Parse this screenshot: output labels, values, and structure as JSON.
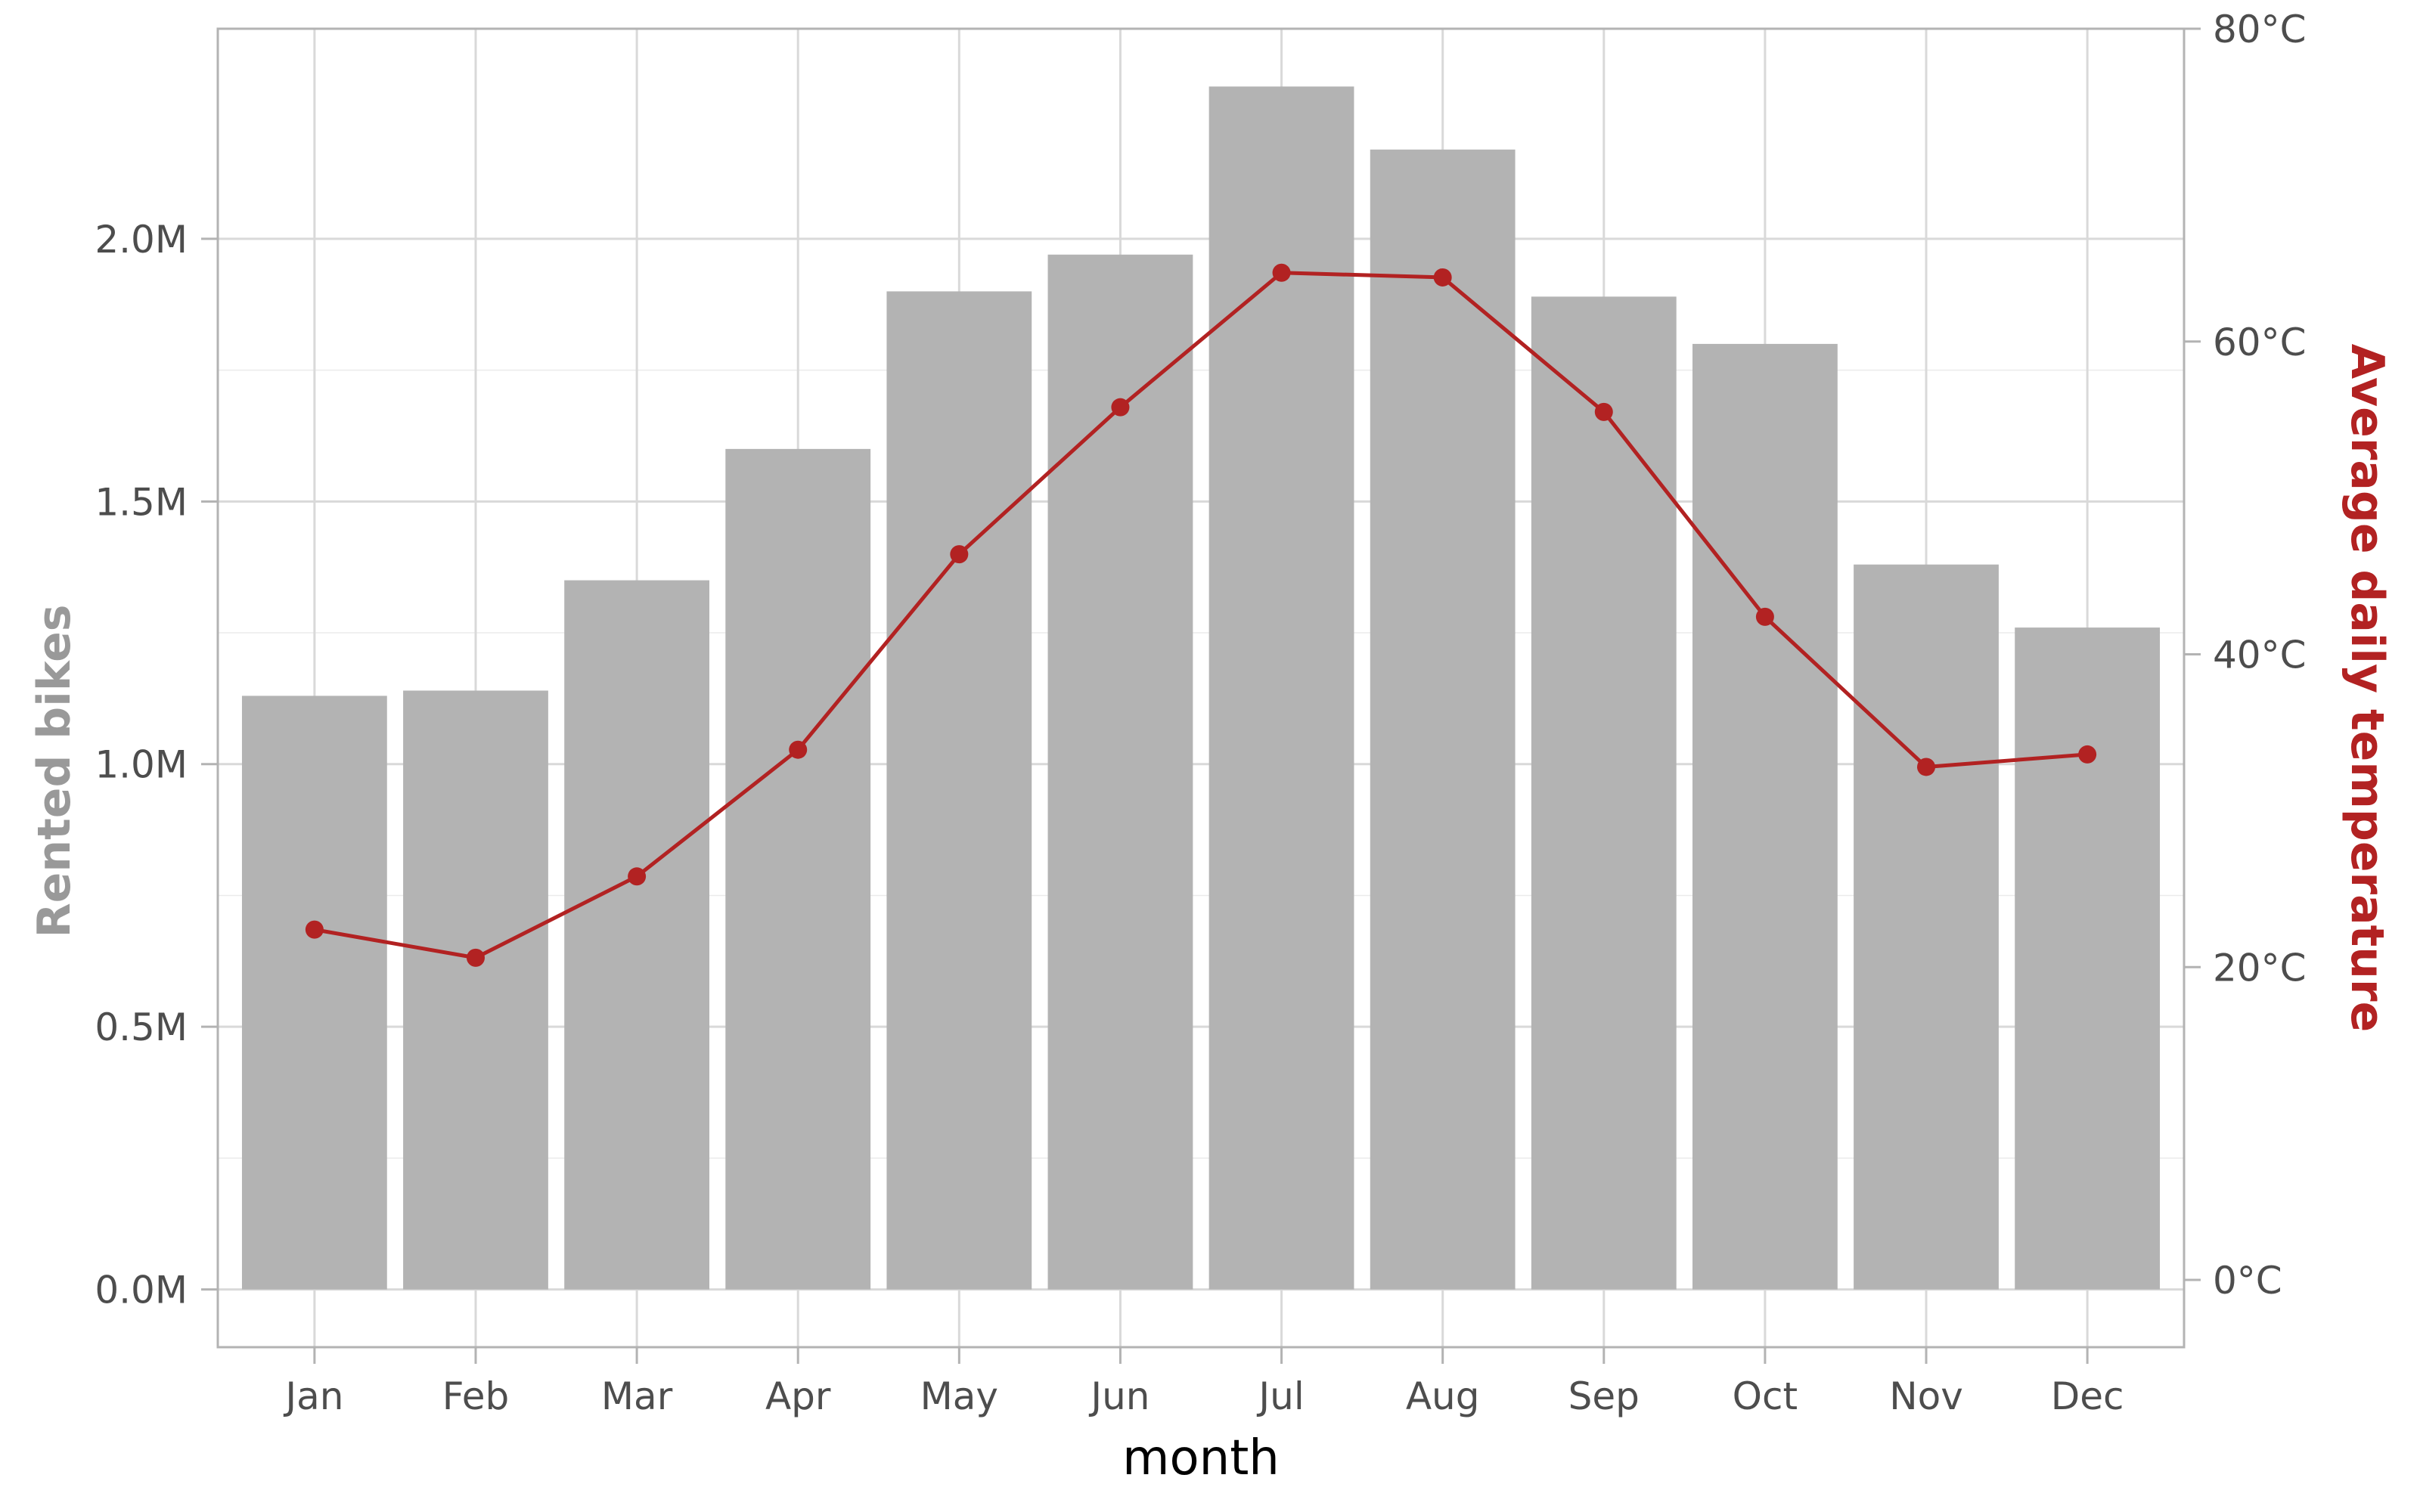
{
  "chart_data": {
    "type": "bar",
    "categories": [
      "Jan",
      "Feb",
      "Mar",
      "Apr",
      "May",
      "Jun",
      "Jul",
      "Aug",
      "Sep",
      "Oct",
      "Nov",
      "Dec"
    ],
    "series": [
      {
        "type": "bar",
        "axis": "left",
        "color": "#b3b3b3",
        "values": [
          1130000,
          1140000,
          1350000,
          1600000,
          1900000,
          1970000,
          2290000,
          2170000,
          1890000,
          1800000,
          1380000,
          1260000
        ]
      },
      {
        "type": "line",
        "axis": "right",
        "color": "#b22222",
        "values": [
          22.4,
          20.6,
          25.8,
          33.9,
          46.4,
          55.8,
          64.4,
          64.1,
          55.5,
          42.4,
          32.8,
          33.6
        ]
      }
    ],
    "xlabel": "month",
    "ylabel": "Rented bikes",
    "ylabel_color": "#999999",
    "y2label": "Average daily temperature",
    "y2label_color": "#b22222",
    "ylim": [
      -110000,
      2400000
    ],
    "y2lim": [
      -4.3,
      80
    ],
    "y_ticks": [
      0,
      500000,
      1000000,
      1500000,
      2000000
    ],
    "y_tick_labels": [
      "0.0M",
      "0.5M",
      "1.0M",
      "1.5M",
      "2.0M"
    ],
    "y2_ticks": [
      0,
      20,
      40,
      60,
      80
    ],
    "y2_tick_labels": [
      "0°C",
      "20°C",
      "40°C",
      "60°C",
      "80°C"
    ],
    "grid": true
  }
}
